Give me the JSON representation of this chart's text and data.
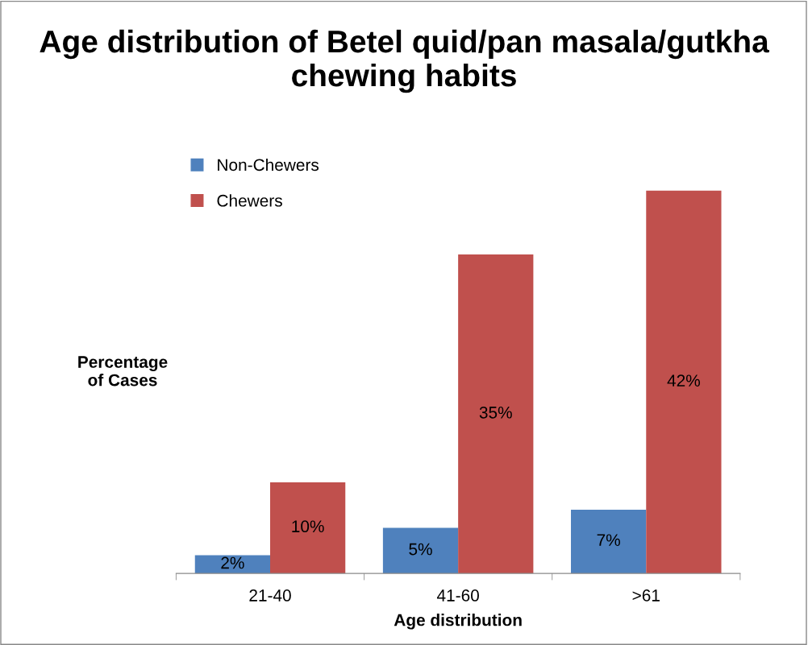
{
  "chart_data": {
    "type": "bar",
    "title": "Age distribution of Betel quid/pan masala/gutkha chewing habits",
    "xlabel": "Age distribution",
    "ylabel": "Percentage\nof Cases",
    "categories": [
      "21-40",
      "41-60",
      ">61"
    ],
    "series": [
      {
        "name": "Non-Chewers",
        "color": "#4f81bd",
        "values": [
          2,
          5,
          7
        ],
        "value_labels": [
          "2%",
          "5%",
          "7%"
        ]
      },
      {
        "name": "Chewers",
        "color": "#c0504d",
        "values": [
          10,
          35,
          42
        ],
        "value_labels": [
          "10%",
          "35%",
          "42%"
        ]
      }
    ],
    "legend": "top left",
    "grid": false
  }
}
